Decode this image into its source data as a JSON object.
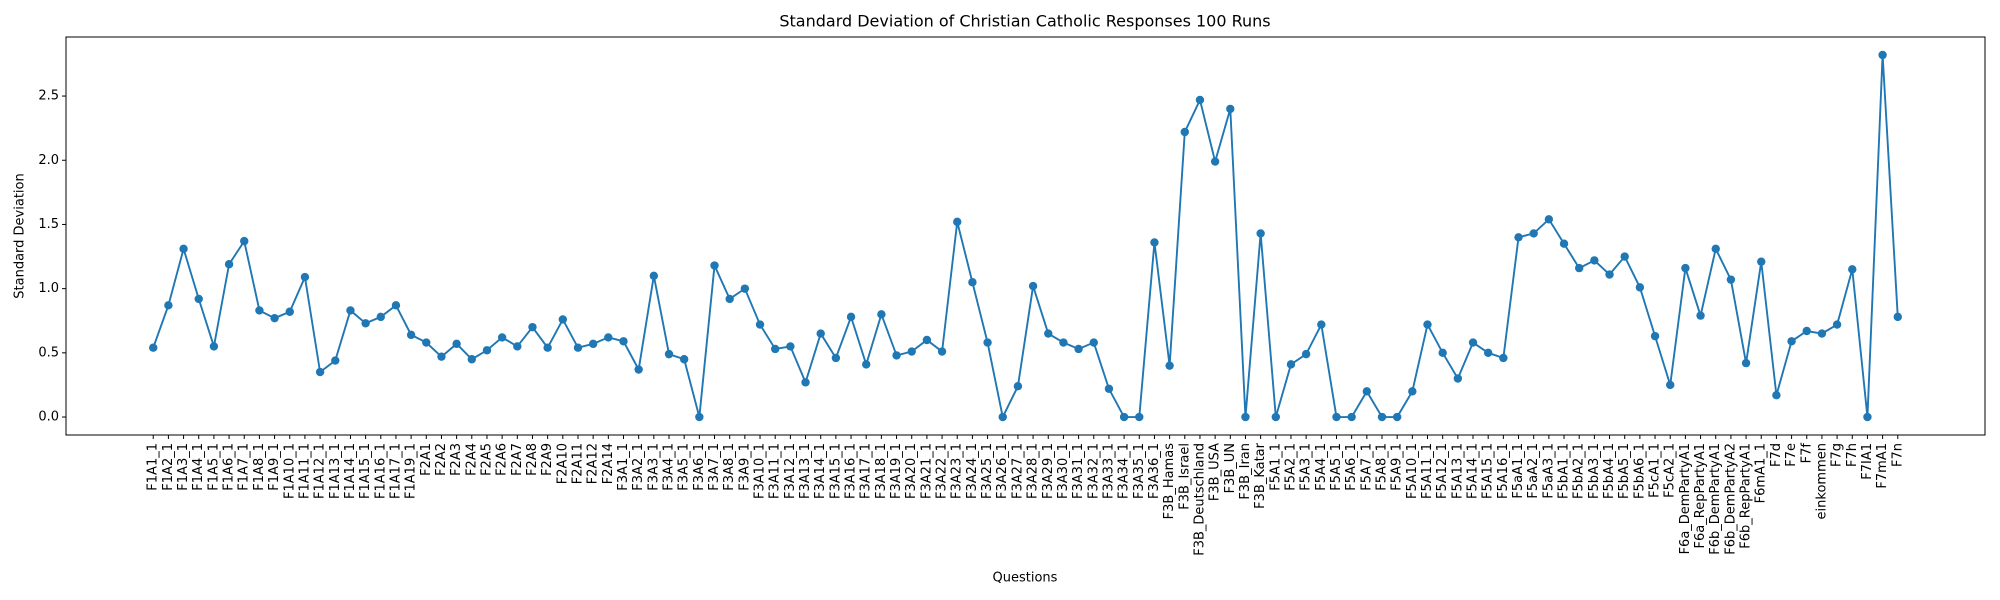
{
  "chart_data": {
    "type": "line",
    "title": "Standard Deviation of Christian Catholic Responses 100 Runs",
    "x_label": "Questions",
    "y_label": "Standard Deviation",
    "categories": [
      "F1A1_1",
      "F1A2_1",
      "F1A3_1",
      "F1A4_1",
      "F1A5_1",
      "F1A6_1",
      "F1A7_1",
      "F1A8_1",
      "F1A9_1",
      "F1A10_1",
      "F1A11_1",
      "F1A12_1",
      "F1A13_1",
      "F1A14_1",
      "F1A15_1",
      "F1A16_1",
      "F1A17_1",
      "F1A19_1",
      "F2A1",
      "F2A2",
      "F2A3",
      "F2A4",
      "F2A5",
      "F2A6",
      "F2A7",
      "F2A8",
      "F2A9",
      "F2A10",
      "F2A11",
      "F2A12",
      "F2A14",
      "F3A1_1",
      "F3A2_1",
      "F3A3_1",
      "F3A4_1",
      "F3A5_1",
      "F3A6_1",
      "F3A7_1",
      "F3A8_1",
      "F3A9_1",
      "F3A10_1",
      "F3A11_1",
      "F3A12_1",
      "F3A13_1",
      "F3A14_1",
      "F3A15_1",
      "F3A16_1",
      "F3A17_1",
      "F3A18_1",
      "F3A19_1",
      "F3A20_1",
      "F3A21_1",
      "F3A22_1",
      "F3A23_1",
      "F3A24_1",
      "F3A25_1",
      "F3A26_1",
      "F3A27_1",
      "F3A28_1",
      "F3A29_1",
      "F3A30_1",
      "F3A31_1",
      "F3A32_1",
      "F3A33_1",
      "F3A34_1",
      "F3A35_1",
      "F3A36_1",
      "F3B_Hamas",
      "F3B_Israel",
      "F3B_Deutschland",
      "F3B_USA",
      "F3B_UN",
      "F3B_Iran",
      "F3B_Katar",
      "F5A1_1",
      "F5A2_1",
      "F5A3_1",
      "F5A4_1",
      "F5A5_1",
      "F5A6_1",
      "F5A7_1",
      "F5A8_1",
      "F5A9_1",
      "F5A10_1",
      "F5A11_1",
      "F5A12_1",
      "F5A13_1",
      "F5A14_1",
      "F5A15_1",
      "F5A16_1",
      "F5aA1_1",
      "F5aA2_1",
      "F5aA3_1",
      "F5bA1_1",
      "F5bA2_1",
      "F5bA3_1",
      "F5bA4_1",
      "F5bA5_1",
      "F5bA6_1",
      "F5cA1_1",
      "F5cA2_1",
      "F6a_DemPartyA1",
      "F6a_RepPartyA1",
      "F6b_DemPartyA1",
      "F6b_DemPartyA2",
      "F6b_RepPartyA1",
      "F6mA1_1",
      "F7d",
      "F7e",
      "F7f",
      "einkommen",
      "F7g",
      "F7h",
      "F7IA1",
      "F7mA1",
      "F7n"
    ],
    "values": [
      0.54,
      0.87,
      1.31,
      0.92,
      0.55,
      1.19,
      1.37,
      0.83,
      0.77,
      0.82,
      1.09,
      0.35,
      0.44,
      0.83,
      0.73,
      0.78,
      0.87,
      0.64,
      0.58,
      0.47,
      0.57,
      0.45,
      0.52,
      0.62,
      0.55,
      0.7,
      0.54,
      0.76,
      0.54,
      0.57,
      0.62,
      0.59,
      0.37,
      1.1,
      0.49,
      0.45,
      0.0,
      1.18,
      0.92,
      1.0,
      0.72,
      0.53,
      0.55,
      0.27,
      0.65,
      0.46,
      0.78,
      0.41,
      0.8,
      0.48,
      0.51,
      0.6,
      0.51,
      1.52,
      1.05,
      0.58,
      0.0,
      0.24,
      1.02,
      0.65,
      0.58,
      0.53,
      0.58,
      0.22,
      0.0,
      0.0,
      1.36,
      0.4,
      2.22,
      2.47,
      1.99,
      2.4,
      0.0,
      1.43,
      0.0,
      0.41,
      0.49,
      0.72,
      0.0,
      0.0,
      0.2,
      0.0,
      0.0,
      0.2,
      0.72,
      0.5,
      0.3,
      0.58,
      0.5,
      0.46,
      1.4,
      1.43,
      1.54,
      1.35,
      1.16,
      1.22,
      1.11,
      1.25,
      1.01,
      0.63,
      0.25,
      1.16,
      0.79,
      1.31,
      1.07,
      0.42,
      1.21,
      0.17,
      0.59,
      0.67,
      0.65,
      0.72,
      1.15,
      0.0,
      2.82,
      0.78
    ],
    "color": "#1f77b4",
    "ylim": [
      -0.14,
      2.96
    ],
    "yticks": [
      {
        "value": 0,
        "label": "0.0"
      },
      0.5,
      {
        "value": 1,
        "label": "1.0"
      },
      1.5,
      {
        "value": 2,
        "label": "2.0"
      },
      2.5
    ],
    "grid": false
  }
}
